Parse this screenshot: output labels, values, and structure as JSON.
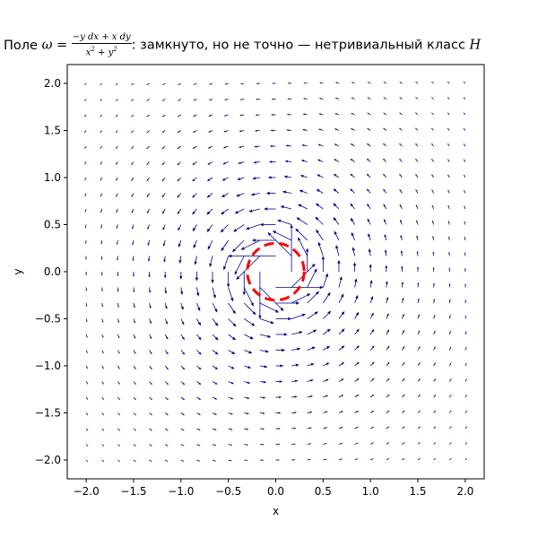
{
  "title": {
    "prefix": "Поле",
    "omega": "ω",
    "eq": " = ",
    "numerator": "−y dx + x dy",
    "denominator_base": "x",
    "denominator_mid": " + y",
    "sq": "2",
    "suffix": ": замкнуто, но не точно — нетривиальный класс",
    "tail": " H"
  },
  "chart_data": {
    "type": "quiver",
    "field": {
      "u": "-y/(x^2+y^2)",
      "v": "x/(x^2+y^2)"
    },
    "grid": {
      "xmin": -2,
      "xmax": 2,
      "ymin": -2,
      "ymax": 2,
      "n": 25
    },
    "xlabel": "x",
    "ylabel": "y",
    "xlim": [
      -2.2,
      2.2
    ],
    "ylim": [
      -2.2,
      2.2
    ],
    "xticks": [
      "−2.0",
      "−1.5",
      "−1.0",
      "−0.5",
      "0.0",
      "0.5",
      "1.0",
      "1.5",
      "2.0"
    ],
    "yticks": [
      "−2.0",
      "−1.5",
      "−1.0",
      "−0.5",
      "0.0",
      "0.5",
      "1.0",
      "1.5",
      "2.0"
    ],
    "arrow_color": "#00008b",
    "circle": {
      "center": [
        0,
        0
      ],
      "radius": 0.3,
      "color": "#ff0000",
      "style": "dashed"
    },
    "grid_lines": false
  }
}
